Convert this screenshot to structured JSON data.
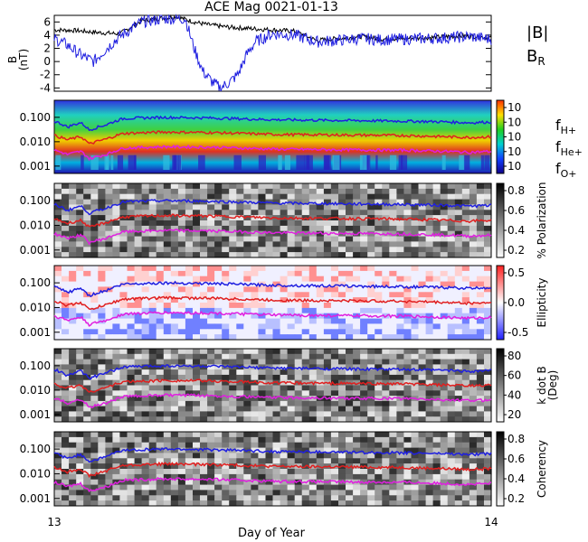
{
  "title": "ACE Mag 0021-01-13",
  "xlabel": "Day of Year",
  "x_ticks": [
    "13",
    "14"
  ],
  "legend_top": {
    "b_total": "|B|",
    "b_r": "B",
    "b_r_sub": "R"
  },
  "freq_legend": [
    {
      "f": "f",
      "sub": "H+",
      "color": "#1f1fe0"
    },
    {
      "f": "f",
      "sub": "He+",
      "color": "#e01f1f"
    },
    {
      "f": "f",
      "sub": "O+",
      "color": "#e01fe0"
    }
  ],
  "colors": {
    "b_total": "#000000",
    "b_r": "#2020e0",
    "f_h": "#1f1fe0",
    "f_he": "#e01f1f",
    "f_o": "#e01fe0"
  },
  "panels": {
    "mag": {
      "ylabel": "B",
      "yunit": "(nT)",
      "yticks": [
        "6",
        "4",
        "2",
        "0",
        "-2",
        "-4"
      ]
    },
    "freq_ticks": [
      "0.100",
      "0.010",
      "0.001"
    ],
    "power": {
      "cb_ticks": [
        "10",
        "10",
        "10",
        "10",
        "10"
      ]
    },
    "polarization": {
      "cb_label": "% Polarization",
      "cb_ticks": [
        "0.8",
        "0.6",
        "0.4",
        "0.2"
      ]
    },
    "ellipticity": {
      "cb_label": "Ellipticity",
      "cb_ticks": [
        "0.5",
        "0.0",
        "-0.5"
      ]
    },
    "kdotb": {
      "cb_label": "k dot B",
      "cb_unit": "(Deg)",
      "cb_ticks": [
        "80",
        "60",
        "40",
        "20"
      ]
    },
    "coherency": {
      "cb_label": "Coherency",
      "cb_ticks": [
        "0.8",
        "0.6",
        "0.4",
        "0.2"
      ]
    }
  },
  "chart_data": {
    "type": "line",
    "title": "ACE Mag 0021-01-13",
    "xlabel": "Day of Year",
    "xlim": [
      13,
      14
    ],
    "ylim": [
      -4.5,
      7
    ],
    "series": [
      {
        "name": "|B|",
        "x": [
          13.0,
          13.05,
          13.1,
          13.15,
          13.2,
          13.25,
          13.28,
          13.3,
          13.32,
          13.35,
          13.4,
          13.45,
          13.5,
          13.55,
          13.6,
          13.65,
          13.7,
          13.75,
          13.8,
          13.85,
          13.9,
          13.95,
          14.0
        ],
        "values": [
          4.8,
          4.7,
          4.4,
          4.2,
          6.2,
          6.6,
          6.8,
          6.4,
          6.0,
          5.6,
          5.2,
          5.0,
          4.8,
          4.6,
          3.2,
          3.5,
          3.8,
          3.4,
          3.5,
          3.6,
          3.8,
          3.9,
          3.6
        ]
      },
      {
        "name": "B_R",
        "x": [
          13.0,
          13.03,
          13.06,
          13.09,
          13.12,
          13.15,
          13.2,
          13.25,
          13.3,
          13.32,
          13.34,
          13.36,
          13.38,
          13.4,
          13.42,
          13.44,
          13.46,
          13.5,
          13.55,
          13.6,
          13.65,
          13.7,
          13.75,
          13.8,
          13.85,
          13.9,
          13.95,
          14.0
        ],
        "values": [
          3.5,
          2.5,
          1.0,
          0.0,
          2.0,
          3.8,
          6.0,
          6.5,
          6.5,
          2.0,
          -1.5,
          -3.0,
          -4.0,
          -3.2,
          -2.0,
          1.0,
          3.0,
          4.2,
          4.0,
          3.0,
          3.2,
          3.5,
          3.3,
          3.4,
          3.5,
          3.6,
          3.8,
          3.4
        ]
      }
    ],
    "freq_lines": {
      "ylim_log": [
        0.0005,
        0.5
      ],
      "x": [
        13.0,
        13.03,
        13.06,
        13.08,
        13.12,
        13.16,
        13.25,
        13.35,
        13.5,
        13.65,
        13.8,
        13.9,
        13.95,
        14.0
      ],
      "f_H": [
        0.07,
        0.04,
        0.06,
        0.03,
        0.05,
        0.09,
        0.1,
        0.095,
        0.08,
        0.075,
        0.07,
        0.065,
        0.06,
        0.065
      ],
      "f_He": [
        0.018,
        0.012,
        0.016,
        0.008,
        0.013,
        0.022,
        0.025,
        0.024,
        0.02,
        0.019,
        0.018,
        0.016,
        0.015,
        0.016
      ],
      "f_O": [
        0.0045,
        0.003,
        0.004,
        0.002,
        0.003,
        0.0055,
        0.0062,
        0.006,
        0.005,
        0.0047,
        0.0045,
        0.004,
        0.0037,
        0.004
      ]
    }
  }
}
